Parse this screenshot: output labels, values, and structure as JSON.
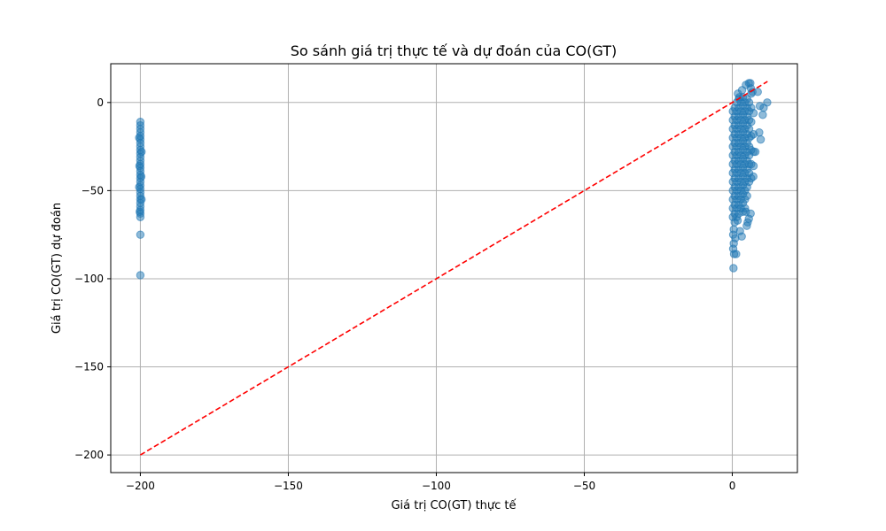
{
  "chart_data": {
    "type": "scatter",
    "title": "So sánh giá trị thực tế và dự đoán của CO(GT)",
    "xlabel": "Giá trị CO(GT) thực tế",
    "ylabel": "Giá trị CO(GT) dự đoán",
    "xlim": [
      -210,
      22
    ],
    "ylim": [
      -210,
      22
    ],
    "xticks": [
      -200,
      -150,
      -100,
      -50,
      0
    ],
    "yticks": [
      0,
      -50,
      -100,
      -150,
      -200
    ],
    "xtick_labels": [
      "−200",
      "−150",
      "−100",
      "−50",
      "0"
    ],
    "ytick_labels": [
      "0",
      "−50",
      "−100",
      "−150",
      "−200"
    ],
    "grid": true,
    "colors": {
      "points": "#1f77b4",
      "reference_line": "#ff0000",
      "grid": "#b0b0b0"
    },
    "reference_line": {
      "style": "dashed",
      "from": [
        -200,
        -200
      ],
      "to": [
        11.9,
        11.9
      ]
    },
    "series": [
      {
        "points": [
          [
            -200,
            -11
          ],
          [
            -200,
            -13
          ],
          [
            -200,
            -15
          ],
          [
            -200,
            -17
          ],
          [
            -200,
            -19
          ],
          [
            -200,
            -21
          ],
          [
            -200,
            -23
          ],
          [
            -200,
            -25
          ],
          [
            -200,
            -27
          ],
          [
            -200,
            -29
          ],
          [
            -200,
            -31
          ],
          [
            -200,
            -33
          ],
          [
            -200,
            -35
          ],
          [
            -200,
            -37
          ],
          [
            -200,
            -39
          ],
          [
            -200,
            -41
          ],
          [
            -200,
            -43
          ],
          [
            -200,
            -45
          ],
          [
            -200,
            -47
          ],
          [
            -200,
            -49
          ],
          [
            -200,
            -51
          ],
          [
            -200,
            -53
          ],
          [
            -200,
            -55
          ],
          [
            -200,
            -57
          ],
          [
            -200,
            -59
          ],
          [
            -200,
            -61
          ],
          [
            -200,
            -63
          ],
          [
            -200,
            -65
          ],
          [
            -200.4,
            -20
          ],
          [
            -199.6,
            -28
          ],
          [
            -200.3,
            -36
          ],
          [
            -199.7,
            -42
          ],
          [
            -200.4,
            -48
          ],
          [
            -199.6,
            -55
          ],
          [
            -200.2,
            -62
          ],
          [
            -200,
            -75
          ],
          [
            -200,
            -98
          ],
          [
            0.2,
            -5
          ],
          [
            0.2,
            -10
          ],
          [
            0.2,
            -15
          ],
          [
            0.2,
            -20
          ],
          [
            0.2,
            -25
          ],
          [
            0.2,
            -30
          ],
          [
            0.2,
            -35
          ],
          [
            0.2,
            -40
          ],
          [
            0.2,
            -45
          ],
          [
            0.2,
            -50
          ],
          [
            0.2,
            -55
          ],
          [
            0.2,
            -60
          ],
          [
            0.2,
            -65
          ],
          [
            0.8,
            -3
          ],
          [
            0.8,
            -8
          ],
          [
            0.8,
            -13
          ],
          [
            0.8,
            -18
          ],
          [
            0.8,
            -23
          ],
          [
            0.8,
            -28
          ],
          [
            0.8,
            -33
          ],
          [
            0.8,
            -38
          ],
          [
            0.8,
            -43
          ],
          [
            0.8,
            -48
          ],
          [
            0.8,
            -53
          ],
          [
            0.8,
            -58
          ],
          [
            0.8,
            -63
          ],
          [
            0.8,
            -68
          ],
          [
            1.5,
            0
          ],
          [
            1.5,
            -5
          ],
          [
            1.5,
            -10
          ],
          [
            1.5,
            -15
          ],
          [
            1.5,
            -20
          ],
          [
            1.5,
            -25
          ],
          [
            1.5,
            -30
          ],
          [
            1.5,
            -35
          ],
          [
            1.5,
            -40
          ],
          [
            1.5,
            -45
          ],
          [
            1.5,
            -50
          ],
          [
            1.5,
            -55
          ],
          [
            1.5,
            -60
          ],
          [
            1.5,
            -65
          ],
          [
            2.2,
            2
          ],
          [
            2.2,
            -3
          ],
          [
            2.2,
            -8
          ],
          [
            2.2,
            -13
          ],
          [
            2.2,
            -18
          ],
          [
            2.2,
            -23
          ],
          [
            2.2,
            -28
          ],
          [
            2.2,
            -33
          ],
          [
            2.2,
            -38
          ],
          [
            2.2,
            -43
          ],
          [
            2.2,
            -48
          ],
          [
            2.2,
            -53
          ],
          [
            2.2,
            -58
          ],
          [
            2.2,
            -63
          ],
          [
            2.9,
            0
          ],
          [
            2.9,
            -5
          ],
          [
            2.9,
            -10
          ],
          [
            2.9,
            -15
          ],
          [
            2.9,
            -20
          ],
          [
            2.9,
            -25
          ],
          [
            2.9,
            -30
          ],
          [
            2.9,
            -35
          ],
          [
            2.9,
            -40
          ],
          [
            2.9,
            -45
          ],
          [
            2.9,
            -50
          ],
          [
            2.9,
            -55
          ],
          [
            2.9,
            -60
          ],
          [
            3.6,
            3
          ],
          [
            3.6,
            -2
          ],
          [
            3.6,
            -7
          ],
          [
            3.6,
            -12
          ],
          [
            3.6,
            -17
          ],
          [
            3.6,
            -22
          ],
          [
            3.6,
            -27
          ],
          [
            3.6,
            -32
          ],
          [
            3.6,
            -37
          ],
          [
            3.6,
            -42
          ],
          [
            3.6,
            -47
          ],
          [
            3.6,
            -52
          ],
          [
            3.6,
            -57
          ],
          [
            3.6,
            -62
          ],
          [
            4.3,
            0
          ],
          [
            4.3,
            -5
          ],
          [
            4.3,
            -10
          ],
          [
            4.3,
            -15
          ],
          [
            4.3,
            -20
          ],
          [
            4.3,
            -25
          ],
          [
            4.3,
            -30
          ],
          [
            4.3,
            -35
          ],
          [
            4.3,
            -40
          ],
          [
            4.3,
            -45
          ],
          [
            4.3,
            -50
          ],
          [
            4.3,
            -55
          ],
          [
            4.3,
            -60
          ],
          [
            5.0,
            2
          ],
          [
            5.0,
            -3
          ],
          [
            5.0,
            -8
          ],
          [
            5.0,
            -13
          ],
          [
            5.0,
            -18
          ],
          [
            5.0,
            -23
          ],
          [
            5.0,
            -28
          ],
          [
            5.0,
            -33
          ],
          [
            5.0,
            -38
          ],
          [
            5.0,
            -43
          ],
          [
            5.0,
            -48
          ],
          [
            5.0,
            -53
          ],
          [
            5.7,
            0
          ],
          [
            5.7,
            -5
          ],
          [
            5.7,
            -10
          ],
          [
            5.7,
            -15
          ],
          [
            5.7,
            -20
          ],
          [
            5.7,
            -25
          ],
          [
            5.7,
            -30
          ],
          [
            5.7,
            -35
          ],
          [
            5.7,
            -40
          ],
          [
            5.7,
            -45
          ],
          [
            6.4,
            5
          ],
          [
            6.4,
            -3
          ],
          [
            6.4,
            -11
          ],
          [
            6.4,
            -19
          ],
          [
            6.4,
            -27
          ],
          [
            6.4,
            -35
          ],
          [
            6.4,
            -43
          ],
          [
            7.2,
            -6
          ],
          [
            7.2,
            -18
          ],
          [
            7.2,
            -28
          ],
          [
            7.2,
            -36
          ],
          [
            0.5,
            -72
          ],
          [
            0.3,
            -75
          ],
          [
            1.0,
            -77
          ],
          [
            0.5,
            -80
          ],
          [
            0.3,
            -83
          ],
          [
            0.6,
            -86
          ],
          [
            1.3,
            -86
          ],
          [
            0.4,
            -94
          ],
          [
            2.6,
            -73
          ],
          [
            3.2,
            -76
          ],
          [
            1.8,
            -67
          ],
          [
            4.6,
            -62
          ],
          [
            5.6,
            -66
          ],
          [
            5.2,
            -68
          ],
          [
            6.2,
            -63
          ],
          [
            4.9,
            -70
          ],
          [
            3.3,
            7
          ],
          [
            4.6,
            10
          ],
          [
            5.6,
            11
          ],
          [
            6.1,
            11
          ],
          [
            6.3,
            8
          ],
          [
            6.8,
            6
          ],
          [
            8.6,
            6
          ],
          [
            9.3,
            -2
          ],
          [
            10.3,
            -7
          ],
          [
            9.6,
            -21
          ],
          [
            9.1,
            -17
          ],
          [
            7.8,
            -28
          ],
          [
            7.1,
            -42
          ],
          [
            11.8,
            0
          ],
          [
            10.6,
            -3
          ],
          [
            1.9,
            5
          ],
          [
            2.4,
            3
          ]
        ]
      }
    ]
  }
}
